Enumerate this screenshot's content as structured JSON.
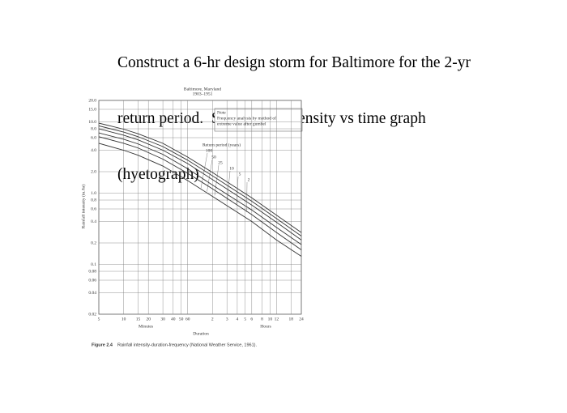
{
  "question": [
    "Construct a 6-hr design storm for Baltimore for the 2-yr",
    "return period.  Sketch the intensity vs time graph",
    "(hyetograph)"
  ],
  "figure": {
    "type": "line",
    "title": "Baltimore, Maryland",
    "subtitle": "1903–1951",
    "note": [
      "Note",
      "Frequency analysis by method of",
      "extreme value after gumbel"
    ],
    "legend_title": "Return period (years)",
    "y_label": "Rainfall intensity (in./hr)",
    "x_minutes_label": "Minutes",
    "x_hours_label": "Hours",
    "x_label": "Duration",
    "log_scale": true,
    "grid": true,
    "color": "#333333",
    "x": [
      5,
      10,
      15,
      30,
      60,
      120,
      360,
      720,
      1440
    ],
    "series": [
      {
        "name": "100",
        "values": [
          9.6,
          7.9,
          6.8,
          5.0,
          3.2,
          1.95,
          0.86,
          0.49,
          0.28
        ]
      },
      {
        "name": "50",
        "values": [
          8.8,
          7.2,
          6.2,
          4.5,
          2.9,
          1.75,
          0.77,
          0.44,
          0.25
        ]
      },
      {
        "name": "25",
        "values": [
          8.0,
          6.5,
          5.6,
          4.0,
          2.6,
          1.55,
          0.68,
          0.39,
          0.22
        ]
      },
      {
        "name": "10",
        "values": [
          7.0,
          5.7,
          4.9,
          3.5,
          2.2,
          1.3,
          0.58,
          0.33,
          0.19
        ]
      },
      {
        "name": "5",
        "values": [
          6.2,
          5.0,
          4.3,
          3.0,
          1.9,
          1.15,
          0.5,
          0.28,
          0.16
        ]
      },
      {
        "name": "2",
        "values": [
          5.0,
          4.0,
          3.4,
          2.4,
          1.5,
          0.9,
          0.4,
          0.22,
          0.13
        ]
      }
    ],
    "ylim": [
      0.02,
      20
    ],
    "yticks": [
      {
        "value": 20,
        "label": "20.0"
      },
      {
        "value": 15,
        "label": "15.0"
      },
      {
        "value": 10,
        "label": "10.0"
      },
      {
        "value": 8,
        "label": "8.0"
      },
      {
        "value": 6,
        "label": "6.0"
      },
      {
        "value": 4,
        "label": "4.0"
      },
      {
        "value": 2,
        "label": "2.0"
      },
      {
        "value": 1,
        "label": "1.0"
      },
      0.8,
      0.6,
      0.4,
      0.2,
      0.1,
      0.08,
      0.06,
      0.04,
      0.02
    ],
    "xlim": [
      5,
      1440
    ],
    "xticks": [
      5,
      10,
      15,
      20,
      30,
      40,
      50,
      60,
      {
        "value": 120,
        "label": "2"
      },
      {
        "value": 180,
        "label": "3"
      },
      {
        "value": 240,
        "label": "4"
      },
      {
        "value": 300,
        "label": "5"
      },
      {
        "value": 360,
        "label": "6"
      },
      {
        "value": 480,
        "label": "8"
      },
      {
        "value": 600,
        "label": "10"
      },
      {
        "value": 720,
        "label": "12"
      },
      {
        "value": 1080,
        "label": "18"
      },
      {
        "value": 1440,
        "label": "24"
      }
    ]
  },
  "caption": {
    "number": "Figure 2.4",
    "text": "Rainfall intensity-duration-frequency (National Weather Service, 1961)."
  }
}
